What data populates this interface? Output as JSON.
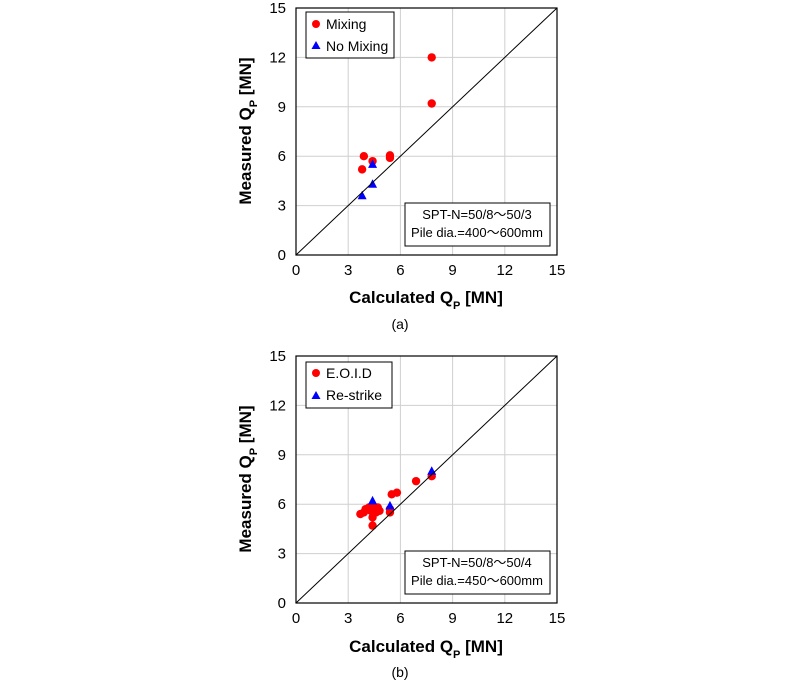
{
  "chart_data": [
    {
      "type": "scatter",
      "caption": "(a)",
      "xlabel": "Calculated Q",
      "xlabel_sub": "P",
      "xlabel_unit": " [MN]",
      "ylabel": "Measured Q",
      "ylabel_sub": "P",
      "ylabel_unit": " [MN]",
      "xlim": [
        0,
        15
      ],
      "ylim": [
        0,
        15
      ],
      "xticks": [
        "0",
        "3",
        "6",
        "9",
        "12",
        "15"
      ],
      "yticks": [
        "0",
        "3",
        "6",
        "9",
        "12",
        "15"
      ],
      "grid": true,
      "reference_line": "1:1",
      "legend_placement": "top-left",
      "annotation": [
        "SPT-N=50/8～50/3",
        "Pile dia.=400～600mm"
      ],
      "series": [
        {
          "name": "Mixing",
          "marker": "circle",
          "color": "#ff0000",
          "points": [
            [
              3.8,
              5.2
            ],
            [
              3.9,
              6.0
            ],
            [
              4.4,
              5.7
            ],
            [
              5.4,
              5.9
            ],
            [
              5.4,
              6.05
            ],
            [
              7.8,
              9.2
            ],
            [
              7.8,
              12.0
            ]
          ]
        },
        {
          "name": "No Mixing",
          "marker": "triangle",
          "color": "#0000ff",
          "points": [
            [
              3.8,
              3.6
            ],
            [
              4.4,
              4.3
            ],
            [
              4.4,
              5.5
            ]
          ]
        }
      ]
    },
    {
      "type": "scatter",
      "caption": "(b)",
      "xlabel": "Calculated Q",
      "xlabel_sub": "P",
      "xlabel_unit": " [MN]",
      "ylabel": "Measured Q",
      "ylabel_sub": "P",
      "ylabel_unit": " [MN]",
      "xlim": [
        0,
        15
      ],
      "ylim": [
        0,
        15
      ],
      "xticks": [
        "0",
        "3",
        "6",
        "9",
        "12",
        "15"
      ],
      "yticks": [
        "0",
        "3",
        "6",
        "9",
        "12",
        "15"
      ],
      "grid": true,
      "reference_line": "1:1",
      "legend_placement": "top-left",
      "annotation": [
        "SPT-N=50/8～50/4",
        "Pile dia.=450～600mm"
      ],
      "series": [
        {
          "name": "E.O.I.D",
          "marker": "circle",
          "color": "#ff0000",
          "points": [
            [
              3.7,
              5.4
            ],
            [
              3.9,
              5.5
            ],
            [
              4.0,
              5.7
            ],
            [
              4.2,
              5.8
            ],
            [
              4.3,
              5.6
            ],
            [
              4.4,
              5.2
            ],
            [
              4.4,
              4.7
            ],
            [
              4.5,
              5.8
            ],
            [
              4.6,
              5.5
            ],
            [
              4.7,
              5.8
            ],
            [
              4.8,
              5.6
            ],
            [
              5.4,
              5.5
            ],
            [
              5.4,
              5.7
            ],
            [
              5.5,
              6.6
            ],
            [
              5.8,
              6.7
            ],
            [
              6.9,
              7.4
            ],
            [
              7.8,
              7.7
            ]
          ]
        },
        {
          "name": "Re-strike",
          "marker": "triangle",
          "color": "#0000ff",
          "points": [
            [
              4.4,
              6.2
            ],
            [
              5.4,
              5.9
            ],
            [
              7.8,
              8.0
            ]
          ]
        }
      ]
    }
  ]
}
